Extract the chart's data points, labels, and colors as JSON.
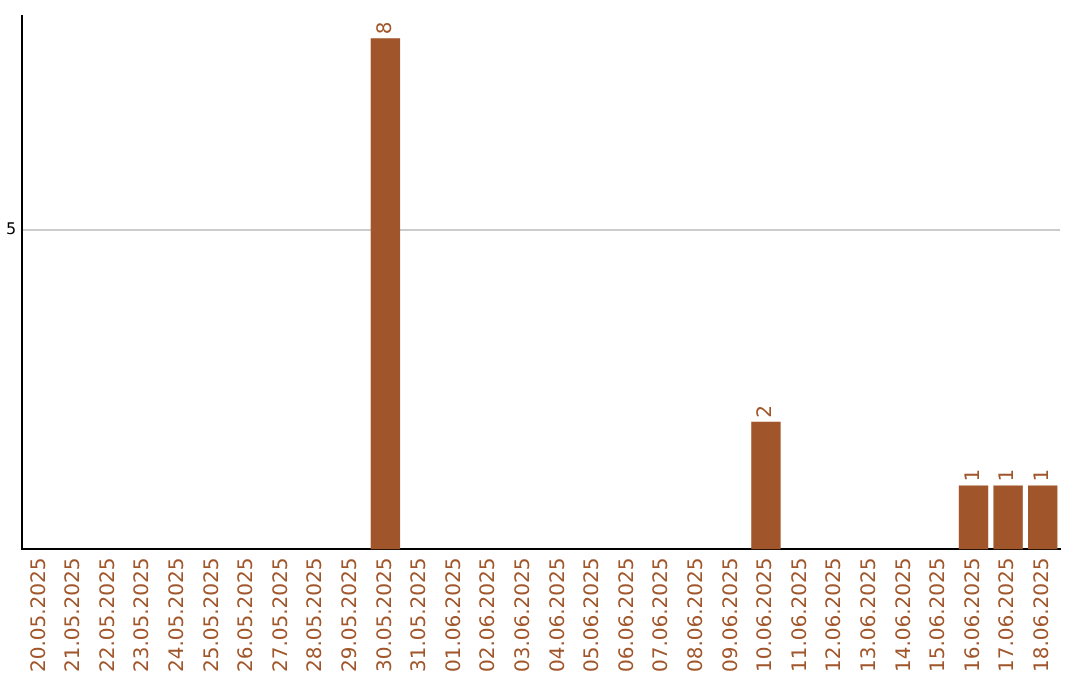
{
  "chart_data": {
    "type": "bar",
    "categories": [
      "20.05.2025",
      "21.05.2025",
      "22.05.2025",
      "23.05.2025",
      "24.05.2025",
      "25.05.2025",
      "26.05.2025",
      "27.05.2025",
      "28.05.2025",
      "29.05.2025",
      "30.05.2025",
      "31.05.2025",
      "01.06.2025",
      "02.06.2025",
      "03.06.2025",
      "04.06.2025",
      "05.06.2025",
      "06.06.2025",
      "07.06.2025",
      "08.06.2025",
      "09.06.2025",
      "10.06.2025",
      "11.06.2025",
      "12.06.2025",
      "13.06.2025",
      "14.06.2025",
      "15.06.2025",
      "16.06.2025",
      "17.06.2025",
      "18.06.2025"
    ],
    "values": [
      0,
      0,
      0,
      0,
      0,
      0,
      0,
      0,
      0,
      0,
      8,
      0,
      0,
      0,
      0,
      0,
      0,
      0,
      0,
      0,
      0,
      2,
      0,
      0,
      0,
      0,
      0,
      1,
      1,
      1
    ],
    "value_labels": [
      null,
      null,
      null,
      null,
      null,
      null,
      null,
      null,
      null,
      null,
      "8",
      null,
      null,
      null,
      null,
      null,
      null,
      null,
      null,
      null,
      null,
      "2",
      null,
      null,
      null,
      null,
      null,
      "1",
      "1",
      "1"
    ],
    "color": "#a0562a",
    "ylim": [
      0,
      8.35
    ],
    "yticks": [
      5
    ],
    "grid": "y",
    "legend": false
  }
}
